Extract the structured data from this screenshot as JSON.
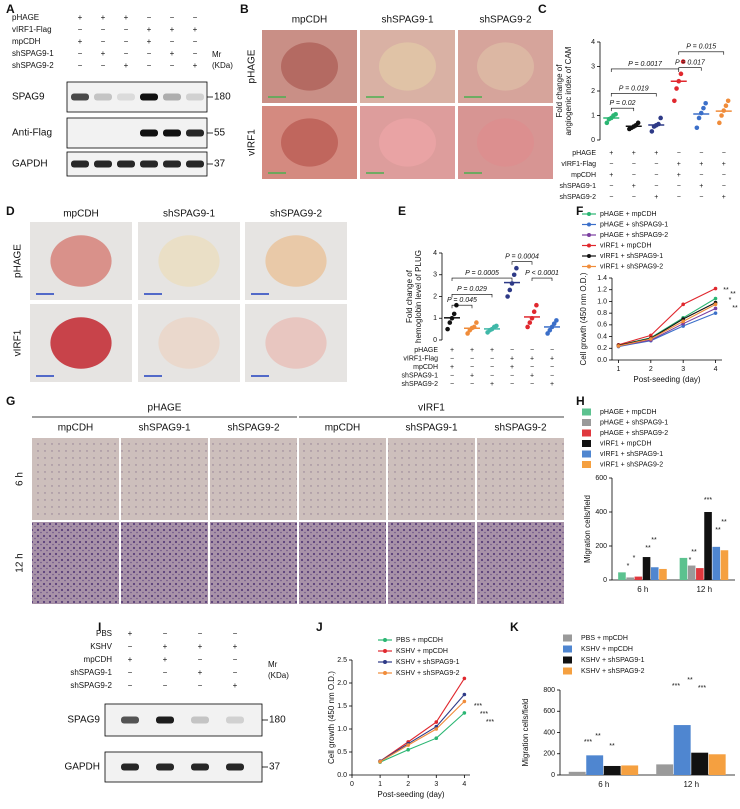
{
  "figure": {
    "A": {
      "label": "A",
      "conditions": [
        {
          "label": "pHAGE",
          "marks": [
            "+",
            "+",
            "+",
            "−",
            "−",
            "−"
          ]
        },
        {
          "label": "vIRF1-Flag",
          "marks": [
            "−",
            "−",
            "−",
            "+",
            "+",
            "+"
          ]
        },
        {
          "label": "mpCDH",
          "marks": [
            "+",
            "−",
            "−",
            "+",
            "−",
            "−"
          ]
        },
        {
          "label": "shSPAG9-1",
          "marks": [
            "−",
            "+",
            "−",
            "−",
            "+",
            "−"
          ]
        },
        {
          "label": "shSPAG9-2",
          "marks": [
            "−",
            "−",
            "+",
            "−",
            "−",
            "+"
          ]
        }
      ],
      "mr": [
        "Mr",
        "(KDa)"
      ],
      "blots": [
        {
          "name": "SPAG9",
          "size": 180
        },
        {
          "name": "Anti-Flag",
          "size": 55
        },
        {
          "name": "GAPDH",
          "size": 37
        }
      ]
    },
    "B": {
      "label": "B",
      "columns": [
        "mpCDH",
        "shSPAG9-1",
        "shSPAG9-2"
      ],
      "rows": [
        "pHAGE",
        "vIRF1"
      ]
    },
    "D": {
      "label": "D",
      "columns": [
        "mpCDH",
        "shSPAG9-1",
        "shSPAG9-2"
      ],
      "rows": [
        "pHAGE",
        "vIRF1"
      ]
    },
    "G": {
      "label": "G",
      "groups": [
        "pHAGE",
        "vIRF1"
      ],
      "columns": [
        "mpCDH",
        "shSPAG9-1",
        "shSPAG9-2",
        "mpCDH",
        "shSPAG9-1",
        "shSPAG9-2"
      ],
      "rows": [
        "6 h",
        "12 h"
      ]
    },
    "I": {
      "label": "I",
      "conditions": [
        {
          "label": "PBS",
          "marks": [
            "+",
            "−",
            "−",
            "−"
          ]
        },
        {
          "label": "KSHV",
          "marks": [
            "−",
            "+",
            "+",
            "+"
          ]
        },
        {
          "label": "mpCDH",
          "marks": [
            "+",
            "+",
            "−",
            "−"
          ]
        },
        {
          "label": "shSPAG9-1",
          "marks": [
            "−",
            "−",
            "+",
            "−"
          ]
        },
        {
          "label": "shSPAG9-2",
          "marks": [
            "−",
            "−",
            "−",
            "+"
          ]
        }
      ],
      "mr": [
        "Mr",
        "(KDa)"
      ],
      "blots": [
        {
          "name": "SPAG9",
          "size": 180
        },
        {
          "name": "GAPDH",
          "size": 37
        }
      ]
    }
  },
  "chart_data": [
    {
      "label": "C",
      "type": "dot",
      "ylabel": [
        "Fold change of",
        "angiogenic index of CAM"
      ],
      "ylim": [
        0,
        4
      ],
      "yticks": [
        0,
        1,
        2,
        3,
        4
      ],
      "colors": [
        "#2bb673",
        "#111111",
        "#2e3a87",
        "#e0282e",
        "#3b6fc9",
        "#f08c3a"
      ],
      "values": [
        0.9,
        0.56,
        0.61,
        2.4,
        1.06,
        1.18
      ],
      "points": [
        [
          0.7,
          0.85,
          0.9,
          1.0,
          1.05
        ],
        [
          0.45,
          0.5,
          0.55,
          0.6,
          0.7
        ],
        [
          0.35,
          0.55,
          0.6,
          0.65,
          0.9
        ],
        [
          1.6,
          2.1,
          2.4,
          2.7,
          3.2
        ],
        [
          0.5,
          0.9,
          1.1,
          1.3,
          1.5
        ],
        [
          0.7,
          1.0,
          1.2,
          1.4,
          1.6
        ]
      ],
      "conditions": [
        {
          "label": "pHAGE",
          "marks": [
            "+",
            "+",
            "+",
            "−",
            "−",
            "−"
          ]
        },
        {
          "label": "vIRF1-Flag",
          "marks": [
            "−",
            "−",
            "−",
            "+",
            "+",
            "+"
          ]
        },
        {
          "label": "mpCDH",
          "marks": [
            "+",
            "−",
            "−",
            "+",
            "−",
            "−"
          ]
        },
        {
          "label": "shSPAG9-1",
          "marks": [
            "−",
            "+",
            "−",
            "−",
            "+",
            "−"
          ]
        },
        {
          "label": "shSPAG9-2",
          "marks": [
            "−",
            "−",
            "+",
            "−",
            "−",
            "+"
          ]
        }
      ],
      "annotations": [
        "P = 0.02",
        "P = 0.019",
        "P = 0.0017",
        "P = 0.015",
        "P = 0.017"
      ]
    },
    {
      "label": "E",
      "type": "dot",
      "ylabel": [
        "Fold change of",
        "hemoglobin level of PLUG"
      ],
      "ylim": [
        0,
        4
      ],
      "yticks": [
        0,
        1,
        2,
        3,
        4
      ],
      "colors": [
        "#111111",
        "#f08c3a",
        "#3fb8a8",
        "#2e3a87",
        "#e0282e",
        "#3b6fc9"
      ],
      "values": [
        1.02,
        0.54,
        0.51,
        2.64,
        1.06,
        0.6
      ],
      "points": [
        [
          0.5,
          0.8,
          1.0,
          1.2,
          1.6
        ],
        [
          0.3,
          0.45,
          0.55,
          0.6,
          0.8
        ],
        [
          0.35,
          0.45,
          0.5,
          0.6,
          0.65
        ],
        [
          2.0,
          2.3,
          2.6,
          3.0,
          3.3
        ],
        [
          0.6,
          0.8,
          1.0,
          1.3,
          1.6
        ],
        [
          0.3,
          0.45,
          0.6,
          0.75,
          0.9
        ]
      ],
      "conditions": [
        {
          "label": "pHAGE",
          "marks": [
            "+",
            "+",
            "+",
            "−",
            "−",
            "−"
          ]
        },
        {
          "label": "vIRF1-Flag",
          "marks": [
            "−",
            "−",
            "−",
            "+",
            "+",
            "+"
          ]
        },
        {
          "label": "mpCDH",
          "marks": [
            "+",
            "−",
            "−",
            "+",
            "−",
            "−"
          ]
        },
        {
          "label": "shSPAG9-1",
          "marks": [
            "−",
            "+",
            "−",
            "−",
            "+",
            "−"
          ]
        },
        {
          "label": "shSPAG9-2",
          "marks": [
            "−",
            "−",
            "+",
            "−",
            "−",
            "+"
          ]
        }
      ],
      "annotations": [
        "P = 0.045",
        "P = 0.029",
        "P = 0.0005",
        "P < 0.0001",
        "P = 0.0004"
      ]
    },
    {
      "label": "F",
      "type": "line",
      "ylabel": [
        "Cell growth (450 nm O.D.)"
      ],
      "xlabel": "Post-seeding (day)",
      "x": [
        1,
        2,
        3,
        4
      ],
      "xlim": [
        0.8,
        4.2
      ],
      "xticks": [
        1,
        2,
        3,
        4
      ],
      "ylim": [
        0,
        1.4
      ],
      "yticks": [
        {
          "value": 0,
          "label": "0.0"
        },
        0.2,
        0.4,
        0.6,
        0.8,
        {
          "value": 1,
          "label": "1.0"
        },
        1.2,
        1.4
      ],
      "series": [
        {
          "name": "pHAGE + mpCDH",
          "color": "#2bb673",
          "values": [
            0.25,
            0.38,
            0.72,
            1.05
          ]
        },
        {
          "name": "pHAGE + shSPAG9-1",
          "color": "#3b6fc9",
          "values": [
            0.23,
            0.33,
            0.58,
            0.8
          ]
        },
        {
          "name": "pHAGE + shSPAG9-2",
          "color": "#7b3fa0",
          "values": [
            0.24,
            0.34,
            0.62,
            0.88
          ]
        },
        {
          "name": "vIRF1 + mpCDH",
          "color": "#e0282e",
          "values": [
            0.26,
            0.42,
            0.95,
            1.22
          ]
        },
        {
          "name": "vIRF1 + shSPAG9-1",
          "color": "#111111",
          "values": [
            0.25,
            0.37,
            0.7,
            0.98
          ]
        },
        {
          "name": "vIRF1 + shSPAG9-2",
          "color": "#f08c3a",
          "values": [
            0.24,
            0.36,
            0.66,
            0.95
          ]
        }
      ],
      "annotations": [
        "**",
        "*",
        "**",
        "**"
      ]
    },
    {
      "label": "H",
      "type": "bar",
      "ylabel": [
        "Migration cells/field"
      ],
      "categories": [
        "6 h",
        "12 h"
      ],
      "ylim": [
        0,
        600
      ],
      "yticks": [
        0,
        200,
        400,
        600
      ],
      "series": [
        {
          "name": "pHAGE + mpCDH",
          "color": "#5cc28f",
          "values": [
            45,
            130
          ]
        },
        {
          "name": "pHAGE + shSPAG9-1",
          "color": "#9a9a9a",
          "values": [
            15,
            85
          ]
        },
        {
          "name": "pHAGE + shSPAG9-2",
          "color": "#e0383e",
          "values": [
            20,
            70
          ]
        },
        {
          "name": "vIRF1 + mpCDH",
          "color": "#111111",
          "values": [
            135,
            400
          ]
        },
        {
          "name": "vIRF1 + shSPAG9-1",
          "color": "#4f86d0",
          "values": [
            75,
            195
          ]
        },
        {
          "name": "vIRF1 + shSPAG9-2",
          "color": "#f5a040",
          "values": [
            65,
            175
          ]
        }
      ],
      "annotations": [
        "*",
        "*",
        "**",
        "**",
        "*",
        "**",
        "***",
        "**",
        "**"
      ]
    },
    {
      "label": "J",
      "type": "line",
      "ylabel": [
        "Cell growth (450 nm O.D.)"
      ],
      "xlabel": "Post-seeding (day)",
      "x": [
        1,
        2,
        3,
        4
      ],
      "xlim": [
        0,
        4.2
      ],
      "xticks": [
        0,
        1,
        2,
        3,
        4
      ],
      "ylim": [
        0,
        2.5
      ],
      "yticks": [
        {
          "value": 0,
          "label": "0.0"
        },
        0.5,
        {
          "value": 1,
          "label": "1.0"
        },
        1.5,
        {
          "value": 2,
          "label": "2.0"
        },
        2.5
      ],
      "series": [
        {
          "name": "PBS + mpCDH",
          "color": "#2bb673",
          "values": [
            0.28,
            0.55,
            0.8,
            1.35
          ]
        },
        {
          "name": "KSHV + mpCDH",
          "color": "#e0282e",
          "values": [
            0.3,
            0.72,
            1.15,
            2.1
          ]
        },
        {
          "name": "KSHV + shSPAG9-1",
          "color": "#2e3a87",
          "values": [
            0.3,
            0.68,
            1.05,
            1.75
          ]
        },
        {
          "name": "KSHV + shSPAG9-2",
          "color": "#f08c3a",
          "values": [
            0.29,
            0.65,
            1.0,
            1.6
          ]
        }
      ],
      "annotations": [
        "***",
        "***",
        "***"
      ]
    },
    {
      "label": "K",
      "type": "bar",
      "ylabel": [
        "Migration cells/field"
      ],
      "categories": [
        "6 h",
        "12 h"
      ],
      "ylim": [
        0,
        800
      ],
      "yticks": [
        0,
        200,
        400,
        600,
        800
      ],
      "series": [
        {
          "name": "PBS + mpCDH",
          "color": "#9a9a9a",
          "values": [
            30,
            100
          ]
        },
        {
          "name": "KSHV + mpCDH",
          "color": "#4f86d0",
          "values": [
            185,
            470
          ]
        },
        {
          "name": "KSHV + shSPAG9-1",
          "color": "#111111",
          "values": [
            85,
            210
          ]
        },
        {
          "name": "KSHV + shSPAG9-2",
          "color": "#f5a040",
          "values": [
            90,
            195
          ]
        }
      ],
      "annotations": [
        "***",
        "**",
        "**",
        "***",
        "**",
        "***"
      ]
    }
  ]
}
